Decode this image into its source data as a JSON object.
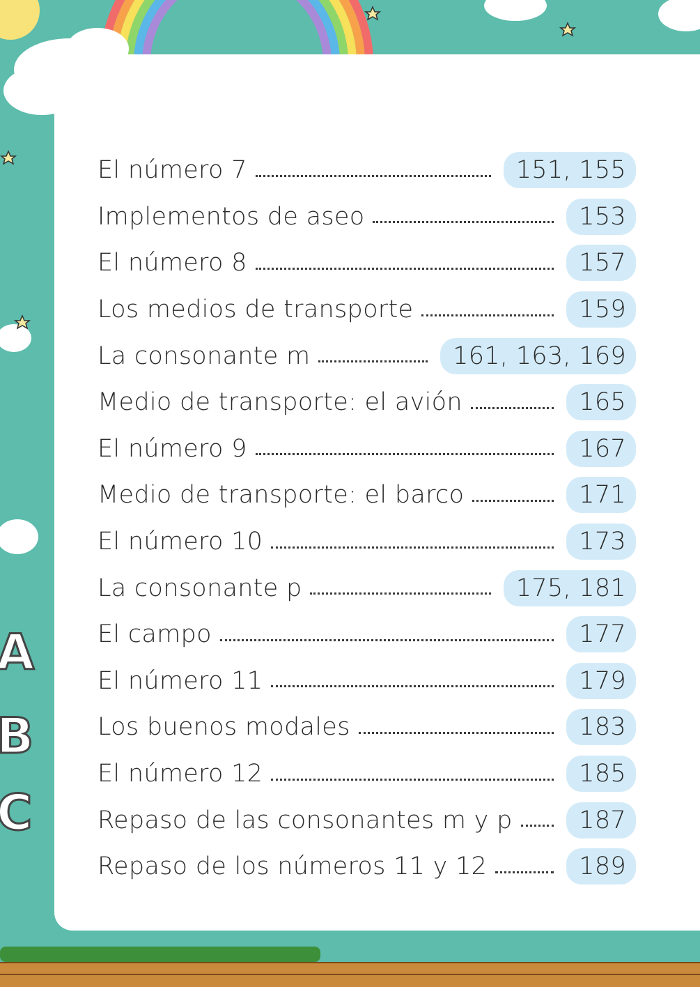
{
  "toc": {
    "entries": [
      {
        "title": "El número 7",
        "pages": "151, 155"
      },
      {
        "title": "Implementos de aseo",
        "pages": "153"
      },
      {
        "title": "El número 8",
        "pages": "157"
      },
      {
        "title": "Los medios de transporte",
        "pages": "159"
      },
      {
        "title": "La consonante m",
        "pages": "161, 163, 169"
      },
      {
        "title": "Medio de transporte: el avión",
        "pages": "165"
      },
      {
        "title": "El número 9",
        "pages": "167"
      },
      {
        "title": "Medio de transporte: el barco",
        "pages": "171"
      },
      {
        "title": "El número 10",
        "pages": "173"
      },
      {
        "title": "La consonante p",
        "pages": "175, 181"
      },
      {
        "title": "El campo",
        "pages": "177"
      },
      {
        "title": "El número 11",
        "pages": "179"
      },
      {
        "title": "Los buenos modales",
        "pages": "183"
      },
      {
        "title": "El número 12",
        "pages": "185"
      },
      {
        "title": "Repaso de las consonantes m y p",
        "pages": "187"
      },
      {
        "title": "Repaso de los números 11 y 12",
        "pages": "189"
      }
    ]
  }
}
